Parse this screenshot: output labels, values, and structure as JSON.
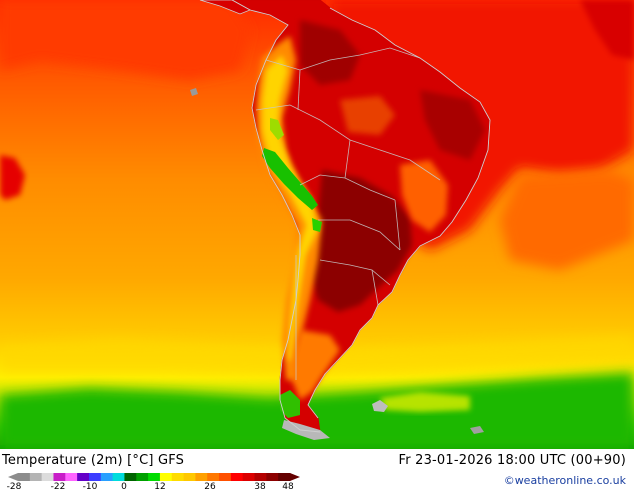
{
  "map": {
    "title": "Temperature (2m) [°C] GFS",
    "timestamp": "Fr 23-01-2026 18:00 UTC (00+90)",
    "credit": "©weatheronline.co.uk",
    "region": "South America",
    "variable": "Temperature (2m)",
    "unit": "°C",
    "model": "GFS"
  },
  "legend": {
    "tick_labels": [
      "-28",
      "-22",
      "-10",
      "0",
      "12",
      "26",
      "38",
      "48"
    ],
    "colors": [
      "#8c8c8c",
      "#b4b4b4",
      "#dcdcdc",
      "#c81ec8",
      "#ff64ff",
      "#6400c8",
      "#3c3cff",
      "#28a0ff",
      "#00dcdc",
      "#006400",
      "#00a000",
      "#00dc00",
      "#ffff00",
      "#ffdc00",
      "#ffc800",
      "#ffa000",
      "#ff7800",
      "#ff5000",
      "#ff0000",
      "#dc0000",
      "#b40000",
      "#8c0000",
      "#640000"
    ]
  }
}
